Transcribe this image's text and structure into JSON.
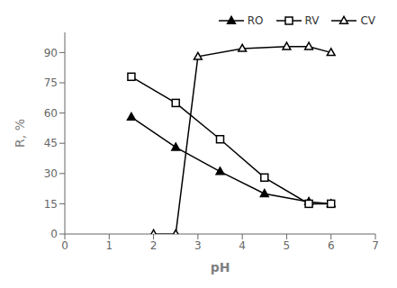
{
  "chart_data": {
    "type": "line",
    "xlabel": "pH",
    "ylabel": "R, %",
    "xlim": [
      0,
      7
    ],
    "ylim": [
      0,
      100
    ],
    "xticks": [
      0,
      1,
      2,
      3,
      4,
      5,
      6,
      7
    ],
    "yticks": [
      0,
      15,
      30,
      45,
      60,
      75,
      90
    ],
    "grid": false,
    "legend": "upper right",
    "series": [
      {
        "name": "RO",
        "color": "black",
        "marker": "filled-triangle",
        "line_style": "solid",
        "x": [
          1.5,
          2.5,
          3.5,
          4.5,
          5.5,
          6.0
        ],
        "values": [
          58,
          43,
          31,
          20,
          16,
          15
        ]
      },
      {
        "name": "RV",
        "color": "black",
        "marker": "open-square",
        "line_style": "solid",
        "x": [
          1.5,
          2.5,
          3.5,
          4.5,
          5.5,
          6.0
        ],
        "values": [
          78,
          65,
          47,
          28,
          15,
          15
        ]
      },
      {
        "name": "CV",
        "color": "black",
        "marker": "open-triangle",
        "line_style": "solid",
        "x": [
          2.0,
          2.5,
          3.0,
          4.0,
          5.0,
          5.5,
          6.0
        ],
        "values": [
          0,
          0,
          88,
          92,
          93,
          93,
          90
        ]
      }
    ]
  }
}
